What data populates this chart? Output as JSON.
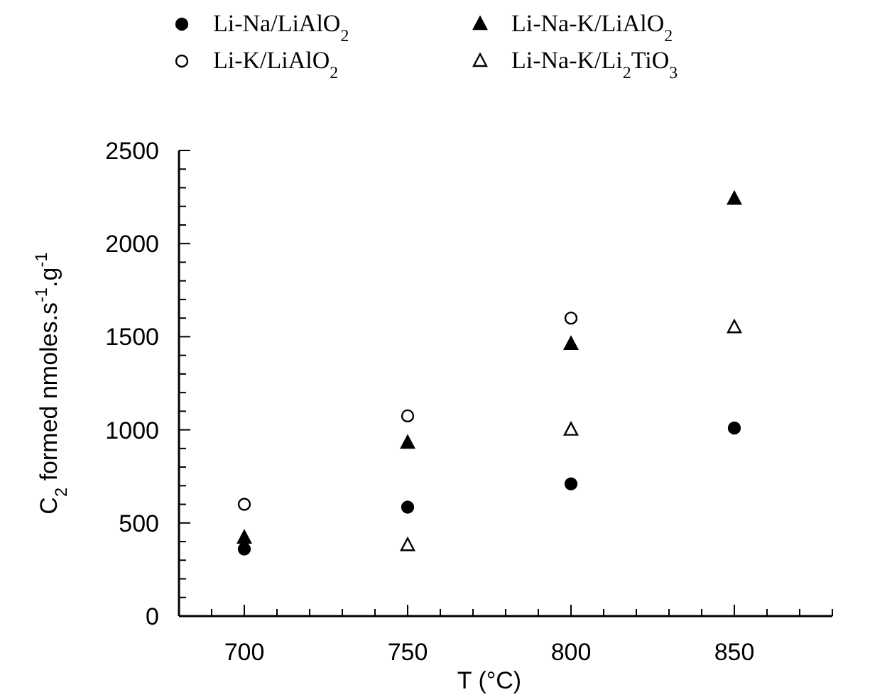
{
  "chart_data": {
    "type": "scatter",
    "xlabel": "T (°C)",
    "ylabel": "C$_{2}$ formed nmoles.s$^{-1}$.g$^{-1}$",
    "x": [
      700,
      750,
      800,
      850
    ],
    "series": [
      {
        "name": "Li-Na/LiAlO$_{2}$",
        "color": "#000000",
        "marker": "circle",
        "values": [
          360,
          585,
          710,
          1010
        ]
      },
      {
        "name": "Li-K/LiAlO$_{2}$",
        "color": "#000000",
        "marker": "circle-open",
        "values": [
          600,
          1075,
          1600,
          null
        ]
      },
      {
        "name": "Li-Na-K/LiAlO$_{2}$",
        "color": "#000000",
        "marker": "triangle",
        "values": [
          420,
          930,
          1460,
          2240
        ]
      },
      {
        "name": "Li-Na-K/Li$_{2}$TiO$_{3}$",
        "color": "#000000",
        "marker": "triangle-open",
        "values": [
          null,
          380,
          1000,
          1550
        ]
      }
    ],
    "xlim": [
      680,
      880
    ],
    "xticks": [
      {
        "value": 680,
        "label": null
      },
      {
        "value": 690,
        "label": null
      },
      700,
      {
        "value": 710,
        "label": null
      },
      {
        "value": 720,
        "label": null
      },
      {
        "value": 730,
        "label": null
      },
      {
        "value": 740,
        "label": null
      },
      750,
      {
        "value": 760,
        "label": null
      },
      {
        "value": 770,
        "label": null
      },
      {
        "value": 780,
        "label": null
      },
      {
        "value": 790,
        "label": null
      },
      800,
      {
        "value": 810,
        "label": null
      },
      {
        "value": 820,
        "label": null
      },
      {
        "value": 830,
        "label": null
      },
      {
        "value": 840,
        "label": null
      },
      850,
      {
        "value": 860,
        "label": null
      },
      {
        "value": 870,
        "label": null
      },
      {
        "value": 880,
        "label": null
      }
    ],
    "ylim": [
      0,
      2500
    ],
    "yticks": [
      0,
      {
        "value": 100,
        "label": null
      },
      {
        "value": 200,
        "label": null
      },
      {
        "value": 300,
        "label": null
      },
      {
        "value": 400,
        "label": null
      },
      500,
      {
        "value": 600,
        "label": null
      },
      {
        "value": 700,
        "label": null
      },
      {
        "value": 800,
        "label": null
      },
      {
        "value": 900,
        "label": null
      },
      1000,
      {
        "value": 1100,
        "label": null
      },
      {
        "value": 1200,
        "label": null
      },
      {
        "value": 1300,
        "label": null
      },
      {
        "value": 1400,
        "label": null
      },
      1500,
      {
        "value": 1600,
        "label": null
      },
      {
        "value": 1700,
        "label": null
      },
      {
        "value": 1800,
        "label": null
      },
      {
        "value": 1900,
        "label": null
      },
      2000,
      {
        "value": 2100,
        "label": null
      },
      {
        "value": 2200,
        "label": null
      },
      {
        "value": 2300,
        "label": null
      },
      {
        "value": 2400,
        "label": null
      },
      2500
    ],
    "grid": false,
    "legend": "top"
  }
}
